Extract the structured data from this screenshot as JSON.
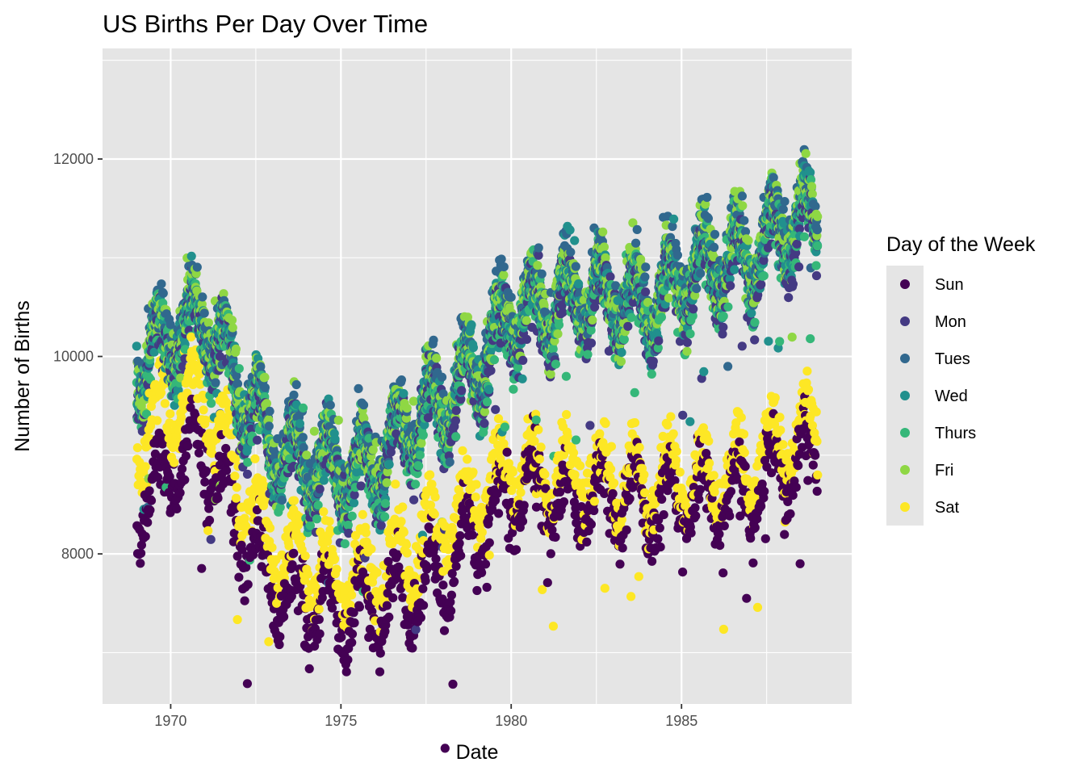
{
  "chart_data": {
    "type": "scatter",
    "title": "US Births Per Day Over Time",
    "xlabel": "Date",
    "ylabel": "Number of Births",
    "xlim": [
      "1968-01-01",
      "1989-12-31"
    ],
    "ylim": [
      6480,
      13120
    ],
    "x_ticks": [
      {
        "value": "1970-01-01",
        "label": "1970"
      },
      {
        "value": "1975-01-01",
        "label": "1975"
      },
      {
        "value": "1980-01-01",
        "label": "1980"
      },
      {
        "value": "1985-01-01",
        "label": "1985"
      }
    ],
    "y_ticks": [
      {
        "value": 8000,
        "label": "8000"
      },
      {
        "value": 10000,
        "label": "10000"
      },
      {
        "value": 12000,
        "label": "12000"
      }
    ],
    "grid": true,
    "legend": {
      "title": "Day of the Week",
      "position": "right",
      "entries": [
        {
          "label": "Sun",
          "color": "#440154"
        },
        {
          "label": "Mon",
          "color": "#443a83"
        },
        {
          "label": "Tues",
          "color": "#31688e"
        },
        {
          "label": "Wed",
          "color": "#21908d"
        },
        {
          "label": "Thurs",
          "color": "#35b779"
        },
        {
          "label": "Fri",
          "color": "#8fd744"
        },
        {
          "label": "Sat",
          "color": "#fde725"
        }
      ]
    },
    "date_range": [
      "1969-01-01",
      "1988-12-31"
    ],
    "series": [
      {
        "name": "Sun",
        "color": "#440154",
        "x": [
          "1969-01-01",
          "1970-01-01",
          "1971-01-01",
          "1972-01-01",
          "1973-01-01",
          "1974-01-01",
          "1975-01-01",
          "1976-01-01",
          "1977-01-01",
          "1978-01-01",
          "1979-01-01",
          "1980-01-01",
          "1981-01-01",
          "1982-01-01",
          "1983-01-01",
          "1984-01-01",
          "1985-01-01",
          "1986-01-01",
          "1987-01-01",
          "1988-01-01",
          "1988-12-31"
        ],
        "y": [
          8500,
          8900,
          9000,
          8300,
          7700,
          7500,
          7400,
          7450,
          7600,
          7800,
          8200,
          8600,
          8600,
          8500,
          8500,
          8450,
          8550,
          8600,
          8600,
          8900,
          8900
        ]
      },
      {
        "name": "Mon",
        "color": "#443a83",
        "x": [
          "1969-01-01",
          "1970-01-01",
          "1971-01-01",
          "1972-01-01",
          "1973-01-01",
          "1974-01-01",
          "1975-01-01",
          "1976-01-01",
          "1977-01-01",
          "1978-01-01",
          "1979-01-01",
          "1980-01-01",
          "1981-01-01",
          "1982-01-01",
          "1983-01-01",
          "1984-01-01",
          "1985-01-01",
          "1986-01-01",
          "1987-01-01",
          "1988-01-01",
          "1988-12-31"
        ],
        "y": [
          9800,
          10100,
          10300,
          9600,
          9000,
          8800,
          8700,
          8800,
          9200,
          9400,
          9800,
          10300,
          10400,
          10500,
          10500,
          10400,
          10700,
          10800,
          10900,
          11200,
          11300
        ]
      },
      {
        "name": "Tues",
        "color": "#31688e",
        "x": [
          "1969-01-01",
          "1970-01-01",
          "1971-01-01",
          "1972-01-01",
          "1973-01-01",
          "1974-01-01",
          "1975-01-01",
          "1976-01-01",
          "1977-01-01",
          "1978-01-01",
          "1979-01-01",
          "1980-01-01",
          "1981-01-01",
          "1982-01-01",
          "1983-01-01",
          "1984-01-01",
          "1985-01-01",
          "1986-01-01",
          "1987-01-01",
          "1988-01-01",
          "1988-12-31"
        ],
        "y": [
          10000,
          10300,
          10500,
          9800,
          9200,
          9000,
          8900,
          9000,
          9400,
          9600,
          10000,
          10500,
          10600,
          10700,
          10700,
          10600,
          10900,
          11000,
          11100,
          11400,
          11500
        ]
      },
      {
        "name": "Wed",
        "color": "#21908d",
        "x": [
          "1969-01-01",
          "1970-01-01",
          "1971-01-01",
          "1972-01-01",
          "1973-01-01",
          "1974-01-01",
          "1975-01-01",
          "1976-01-01",
          "1977-01-01",
          "1978-01-01",
          "1979-01-01",
          "1980-01-01",
          "1981-01-01",
          "1982-01-01",
          "1983-01-01",
          "1984-01-01",
          "1985-01-01",
          "1986-01-01",
          "1987-01-01",
          "1988-01-01",
          "1988-12-31"
        ],
        "y": [
          9900,
          10200,
          10400,
          9700,
          9100,
          8900,
          8800,
          8900,
          9300,
          9500,
          9900,
          10400,
          10500,
          10600,
          10600,
          10500,
          10800,
          10900,
          11000,
          11300,
          11400
        ]
      },
      {
        "name": "Thurs",
        "color": "#35b779",
        "x": [
          "1969-01-01",
          "1970-01-01",
          "1971-01-01",
          "1972-01-01",
          "1973-01-01",
          "1974-01-01",
          "1975-01-01",
          "1976-01-01",
          "1977-01-01",
          "1978-01-01",
          "1979-01-01",
          "1980-01-01",
          "1981-01-01",
          "1982-01-01",
          "1983-01-01",
          "1984-01-01",
          "1985-01-01",
          "1986-01-01",
          "1987-01-01",
          "1988-01-01",
          "1988-12-31"
        ],
        "y": [
          9850,
          10150,
          10350,
          9650,
          9050,
          8850,
          8750,
          8850,
          9250,
          9450,
          9850,
          10350,
          10450,
          10550,
          10550,
          10450,
          10750,
          10850,
          10950,
          11250,
          11350
        ]
      },
      {
        "name": "Fri",
        "color": "#8fd744",
        "x": [
          "1969-01-01",
          "1970-01-01",
          "1971-01-01",
          "1972-01-01",
          "1973-01-01",
          "1974-01-01",
          "1975-01-01",
          "1976-01-01",
          "1977-01-01",
          "1978-01-01",
          "1979-01-01",
          "1980-01-01",
          "1981-01-01",
          "1982-01-01",
          "1983-01-01",
          "1984-01-01",
          "1985-01-01",
          "1986-01-01",
          "1987-01-01",
          "1988-01-01",
          "1988-12-31"
        ],
        "y": [
          9950,
          10250,
          10450,
          9750,
          9150,
          8950,
          8850,
          8950,
          9350,
          9550,
          9950,
          10450,
          10550,
          10650,
          10650,
          10550,
          10850,
          10950,
          11050,
          11350,
          11500
        ]
      },
      {
        "name": "Sat",
        "color": "#fde725",
        "x": [
          "1969-01-01",
          "1970-01-01",
          "1971-01-01",
          "1972-01-01",
          "1973-01-01",
          "1974-01-01",
          "1975-01-01",
          "1976-01-01",
          "1977-01-01",
          "1978-01-01",
          "1979-01-01",
          "1980-01-01",
          "1981-01-01",
          "1982-01-01",
          "1983-01-01",
          "1984-01-01",
          "1985-01-01",
          "1986-01-01",
          "1987-01-01",
          "1988-01-01",
          "1988-12-31"
        ],
        "y": [
          9100,
          9500,
          9700,
          8700,
          8100,
          7900,
          7800,
          7800,
          8000,
          8300,
          8600,
          8900,
          8800,
          8800,
          8800,
          8700,
          8800,
          8800,
          8900,
          9100,
          9200
        ]
      }
    ]
  }
}
